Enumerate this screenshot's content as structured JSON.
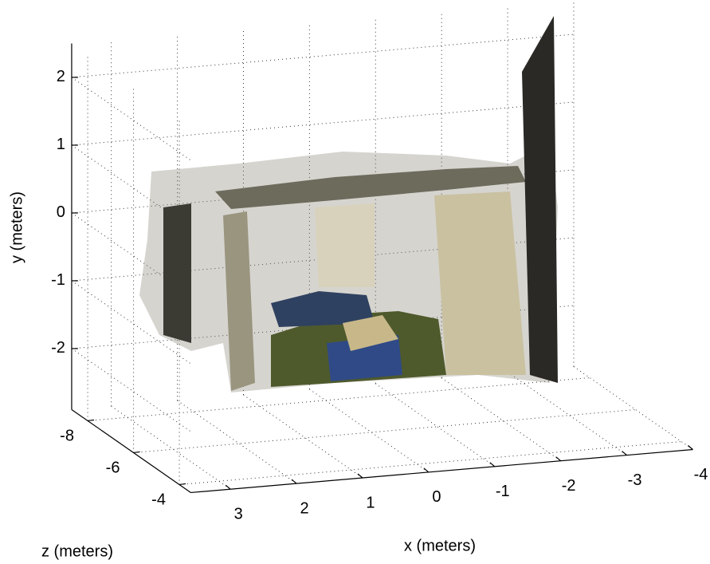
{
  "chart_data": {
    "type": "scatter3d",
    "xlabel": "x (meters)",
    "ylabel": "y (meters)",
    "zlabel": "z (meters)",
    "xlim": [
      3.6,
      -4
    ],
    "ylim": [
      -2.9,
      2.5
    ],
    "zlim": [
      -3.5,
      -8.7
    ],
    "xticks": [
      3,
      2,
      1,
      0,
      -1,
      -2,
      -3,
      -4
    ],
    "yticks": [
      -2,
      -1,
      0,
      1,
      2
    ],
    "zticks": [
      -8,
      -6,
      -4
    ],
    "grid": true
  }
}
